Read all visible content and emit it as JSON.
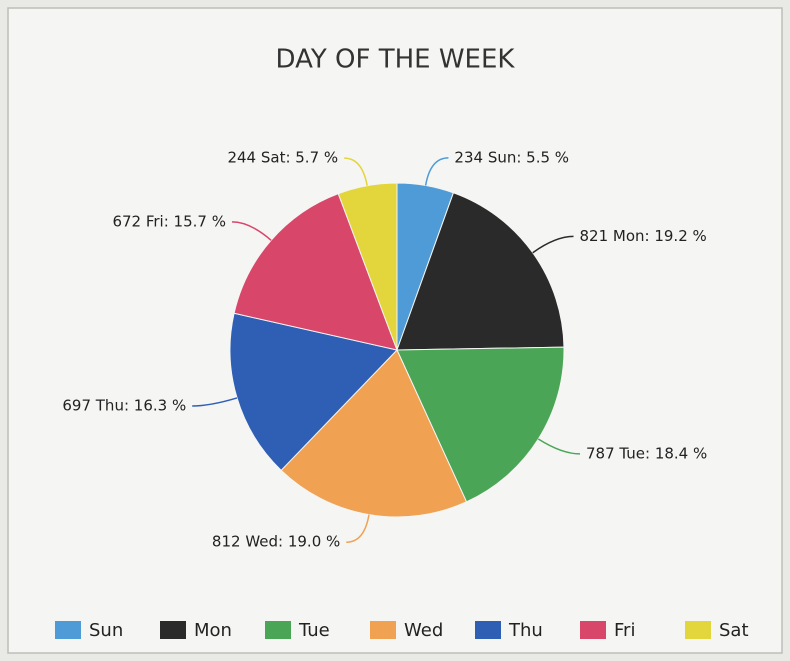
{
  "chart_data": {
    "type": "pie",
    "title": "DAY OF THE WEEK",
    "categories": [
      "Sun",
      "Mon",
      "Tue",
      "Wed",
      "Thu",
      "Fri",
      "Sat"
    ],
    "values": [
      234,
      821,
      787,
      812,
      697,
      672,
      244
    ],
    "value_labels": [
      "234 Sun: 5.5 %",
      "821 Mon: 19.2 %",
      "787 Tue: 18.4 %",
      "812 Wed: 19.0 %",
      "697 Thu: 16.3 %",
      "672 Fri: 15.7 %",
      "244 Sat: 5.7 %"
    ],
    "colors": [
      "#4f9bd8",
      "#2a2a2a",
      "#4aa656",
      "#f0a252",
      "#2f5fb5",
      "#d8466a",
      "#e3d53c"
    ],
    "legend": "bottom"
  }
}
